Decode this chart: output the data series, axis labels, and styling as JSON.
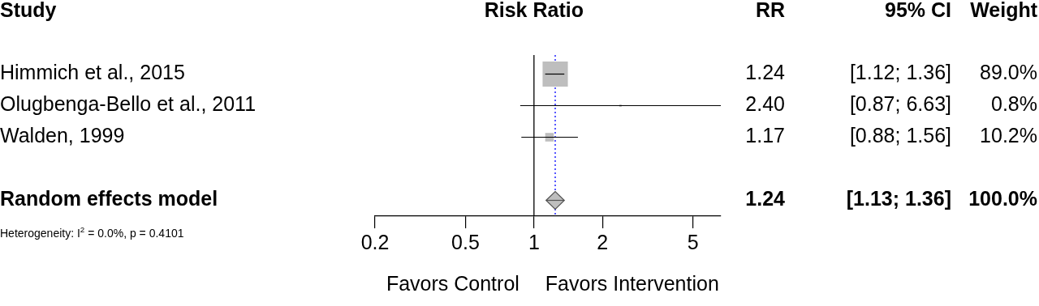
{
  "chart_data": {
    "type": "scatter",
    "orientation": "horizontal",
    "title": "Risk Ratio",
    "categories": [
      "Himmich et al., 2015",
      "Olugbenga-Bello et al., 2011",
      "Walden, 1999",
      null,
      "Random effects model"
    ],
    "series": [
      {
        "color": "#bebebe",
        "marker": "square",
        "values": [
          1.24,
          2.4,
          1.17,
          null,
          null
        ],
        "errors": [
          [
            1.12,
            1.36
          ],
          [
            0.87,
            6.63
          ],
          [
            0.88,
            1.56
          ],
          null,
          null
        ],
        "sizes": [
          1,
          0.009,
          0.115,
          null,
          null
        ]
      },
      {
        "color": "#bebebe",
        "marker": "diamond",
        "values": [
          null,
          null,
          null,
          null,
          1.24
        ],
        "errors": [
          null,
          null,
          null,
          null,
          [
            1.13,
            1.36
          ]
        ]
      }
    ],
    "log": "x",
    "xlim": [
      0.2,
      6.63
    ],
    "xticks": [
      0.2,
      0.5,
      1,
      2,
      5
    ],
    "ref_lines": [
      {
        "axis": "x",
        "value": 1,
        "color": "#000000",
        "line_style": "solid"
      },
      {
        "axis": "x",
        "value": 1.24,
        "color": "#0000ff",
        "line_style": "dotted"
      }
    ],
    "annotations": [
      "Study",
      "RR",
      "95% CI",
      "Weight",
      "Heterogeneity: I$^{2}$ = 0.0%, p = 0.4101",
      "Favors Control",
      "Favors Intervention",
      "1.24",
      "[1.12; 1.36]",
      "89.0%",
      "2.40",
      "[0.87; 6.63]",
      "0.8%",
      "1.17",
      "[0.88; 1.56]",
      "10.2%",
      "1.24",
      "[1.13; 1.36]",
      "100.0%"
    ]
  }
}
